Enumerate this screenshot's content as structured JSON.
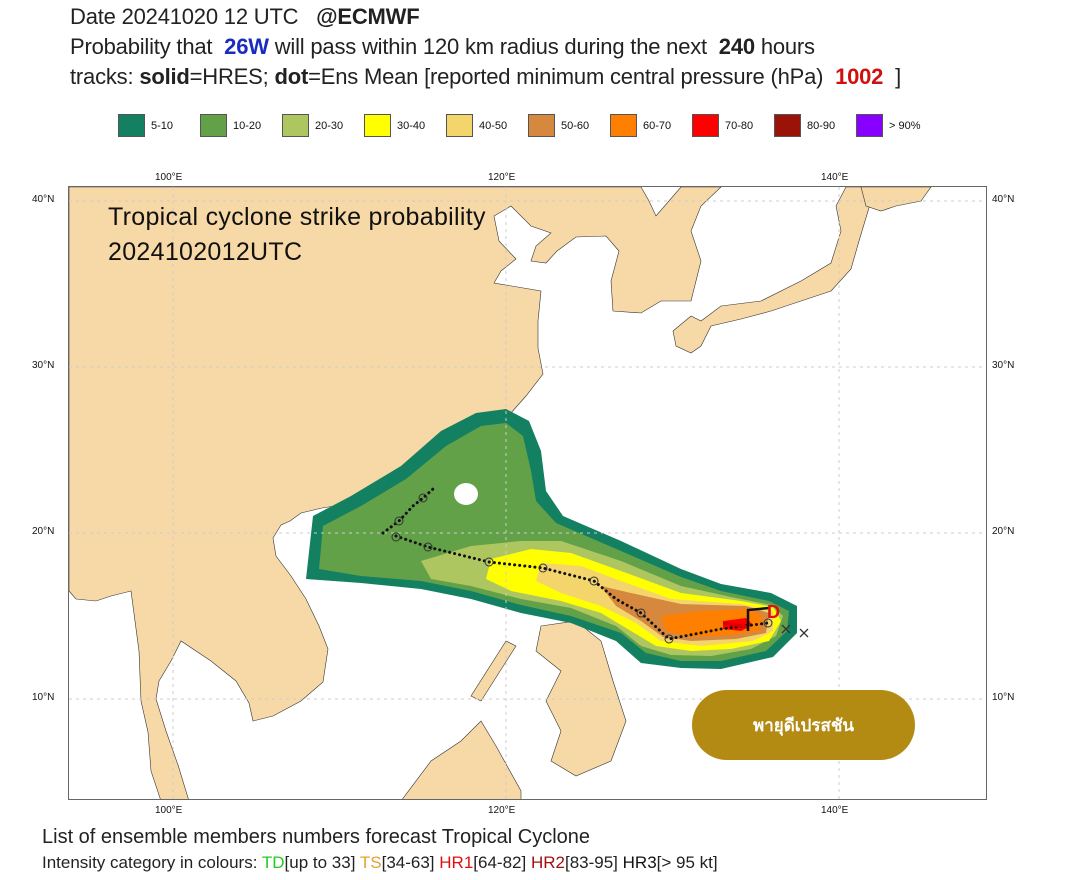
{
  "header": {
    "line1_date": "Date 20241020 12 UTC",
    "line1_org": "@ECMWF",
    "line2_pre": "Probability that",
    "line2_storm": "26W",
    "line2_mid": "will pass within 120 km radius during the next",
    "line2_hours": "240",
    "line2_post": "hours",
    "line3_a": "tracks:",
    "line3_solid": "solid",
    "line3_b": "=HRES;",
    "line3_dot": "dot",
    "line3_c": "=Ens Mean [reported minimum central pressure (hPa)",
    "line3_pressure": "1002",
    "line3_end": "]"
  },
  "legend": [
    {
      "label": "5-10",
      "color": "#138062"
    },
    {
      "label": "10-20",
      "color": "#62a148"
    },
    {
      "label": "20-30",
      "color": "#aec660"
    },
    {
      "label": "30-40",
      "color": "#ffff00"
    },
    {
      "label": "40-50",
      "color": "#f3d56c"
    },
    {
      "label": "50-60",
      "color": "#d6893e"
    },
    {
      "label": "60-70",
      "color": "#ff7f00"
    },
    {
      "label": "70-80",
      "color": "#ff0000"
    },
    {
      "label": "80-90",
      "color": "#9a1208"
    },
    {
      "label": "> 90%",
      "color": "#8800ff"
    }
  ],
  "map": {
    "title_line1": "Tropical cyclone strike probability",
    "title_line2": "2024102012UTC",
    "lon_labels": [
      "100°E",
      "120°E",
      "140°E"
    ],
    "lat_labels": [
      "40°N",
      "30°N",
      "20°N",
      "10°N"
    ],
    "storm_marker": "D",
    "colors": {
      "land": "#f7d9a7",
      "sea": "#ffffff"
    }
  },
  "badge": {
    "label": "พายุดีเปรสชัน",
    "color": "#b38a12"
  },
  "footer": {
    "line1": "List of ensemble members numbers forecast Tropical Cyclone",
    "line2_pre": "Intensity category in colours:",
    "cats": [
      {
        "name": "TD",
        "range": "[up to 33]",
        "color": "#22cc22"
      },
      {
        "name": "TS",
        "range": "[34-63]",
        "color": "#e8a030"
      },
      {
        "name": "HR1",
        "range": "[64-82]",
        "color": "#e01010"
      },
      {
        "name": "HR2",
        "range": "[83-95]",
        "color": "#a01010"
      },
      {
        "name": "HR3",
        "range": "[> 95 kt]",
        "color": "#111111"
      }
    ]
  }
}
